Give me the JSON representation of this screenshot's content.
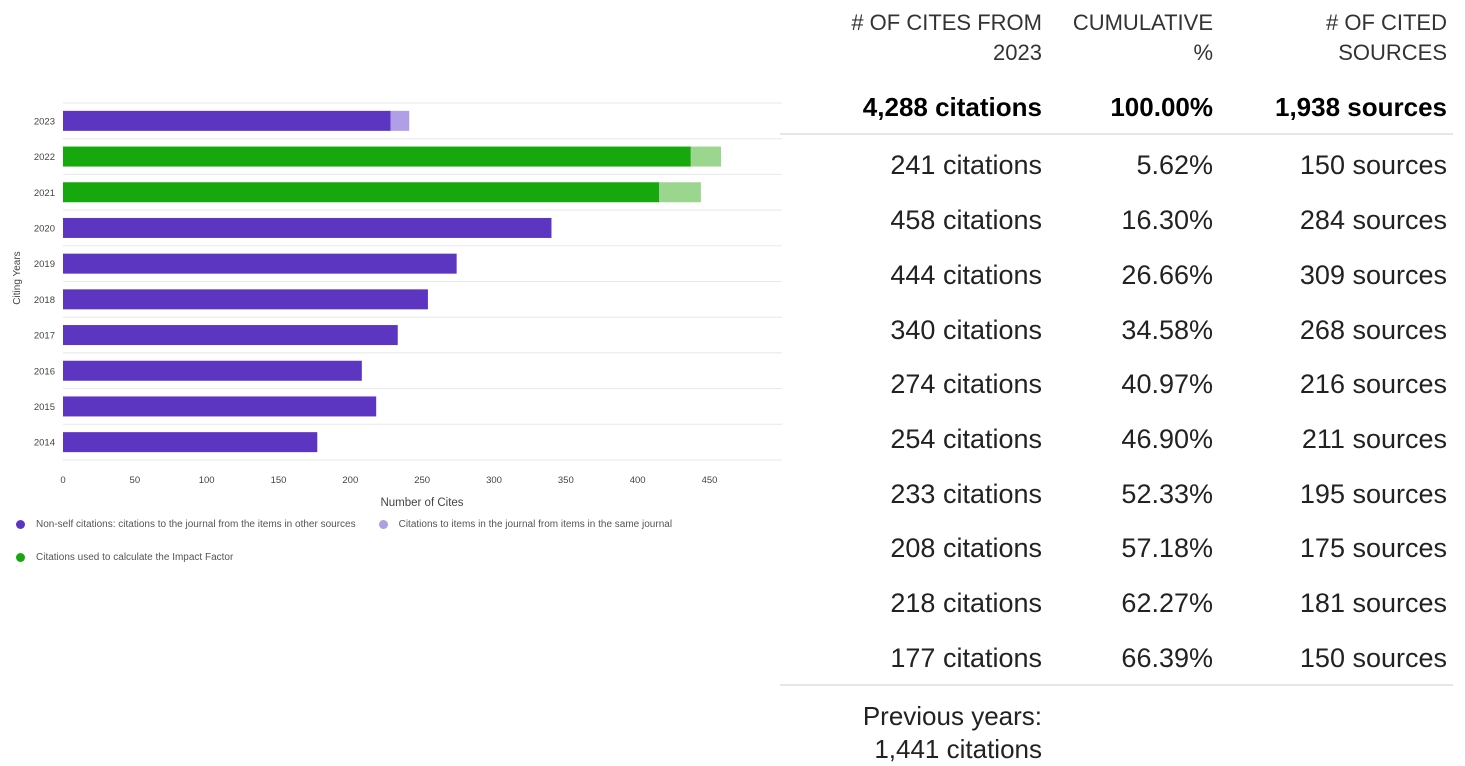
{
  "chart_data": {
    "type": "bar",
    "orientation": "horizontal",
    "stacked": true,
    "categories": [
      "2023",
      "2022",
      "2021",
      "2020",
      "2019",
      "2018",
      "2017",
      "2016",
      "2015",
      "2014"
    ],
    "series": [
      {
        "name": "Non-self citations: citations to the journal from the items in other sources",
        "values": [
          228,
          437,
          415,
          340,
          274,
          254,
          233,
          208,
          218,
          177
        ]
      },
      {
        "name": "Citations to items in the journal from items in the same journal",
        "values": [
          13,
          21,
          29,
          0,
          0,
          0,
          0,
          0,
          0,
          0
        ]
      }
    ],
    "impact_factor_years": [
      "2022",
      "2021"
    ],
    "xlabel": "Number of Cites",
    "ylabel": "Citing Years",
    "xlim": [
      0,
      500
    ],
    "xticks": [
      0,
      50,
      100,
      150,
      200,
      250,
      300,
      350,
      400,
      450
    ],
    "grid": true,
    "legend_position": "bottom"
  },
  "colors": {
    "non_self": "#5c35c1",
    "self": "#b09ee6",
    "impact_factor": "#17a80d",
    "impact_factor_self": "#9bd68f"
  },
  "legend": {
    "non_self": "Non-self citations: citations to the journal from the items in other sources",
    "self": "Citations to items in the journal from items in the same journal",
    "impact_factor": "Citations used to calculate the Impact Factor"
  },
  "table": {
    "headers": {
      "cites_line1": "# OF CITES FROM",
      "cites_line2": "2023",
      "cumulative_line1": "CUMULATIVE",
      "cumulative_line2": "%",
      "sources_line1": "# OF CITED",
      "sources_line2": "SOURCES"
    },
    "total": {
      "cites": "4,288 citations",
      "cumulative": "100.00%",
      "sources": "1,938 sources"
    },
    "rows": [
      {
        "cites": "241 citations",
        "cumulative": "5.62%",
        "sources": "150 sources"
      },
      {
        "cites": "458 citations",
        "cumulative": "16.30%",
        "sources": "284 sources"
      },
      {
        "cites": "444 citations",
        "cumulative": "26.66%",
        "sources": "309 sources"
      },
      {
        "cites": "340 citations",
        "cumulative": "34.58%",
        "sources": "268 sources"
      },
      {
        "cites": "274 citations",
        "cumulative": "40.97%",
        "sources": "216 sources"
      },
      {
        "cites": "254 citations",
        "cumulative": "46.90%",
        "sources": "211 sources"
      },
      {
        "cites": "233 citations",
        "cumulative": "52.33%",
        "sources": "195 sources"
      },
      {
        "cites": "208 citations",
        "cumulative": "57.18%",
        "sources": "175 sources"
      },
      {
        "cites": "218 citations",
        "cumulative": "62.27%",
        "sources": "181 sources"
      },
      {
        "cites": "177 citations",
        "cumulative": "66.39%",
        "sources": "150 sources"
      }
    ],
    "previous_line1": "Previous years:",
    "previous_line2": "1,441 citations"
  }
}
